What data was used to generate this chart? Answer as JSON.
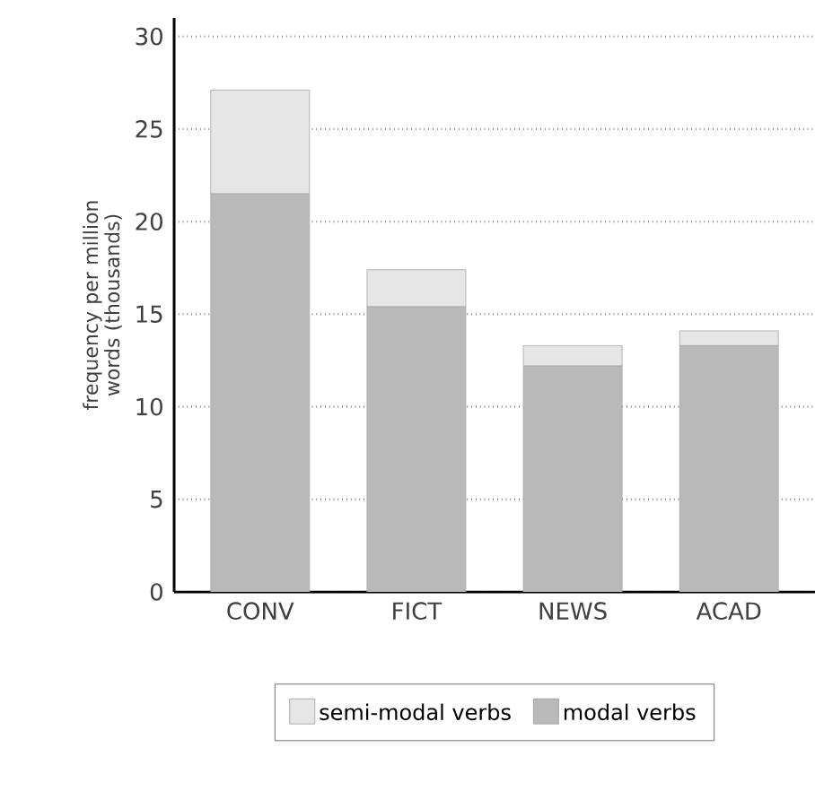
{
  "chart_data": {
    "type": "bar",
    "ylabel": "frequency per million words (thousands)",
    "categories": [
      "CONV",
      "FICT",
      "NEWS",
      "ACAD"
    ],
    "stacked": true,
    "ylim": [
      0,
      31
    ],
    "yticks": [
      0,
      5,
      10,
      15,
      20,
      25,
      30
    ],
    "grid": "y",
    "legend": "bottom",
    "series": [
      {
        "name": "modal verbs",
        "color": "#b9b9b9",
        "values": [
          21.5,
          15.4,
          12.2,
          13.3
        ]
      },
      {
        "name": "semi-modal verbs",
        "color": "#e6e6e6",
        "values": [
          5.6,
          2.0,
          1.1,
          0.8
        ]
      }
    ]
  }
}
